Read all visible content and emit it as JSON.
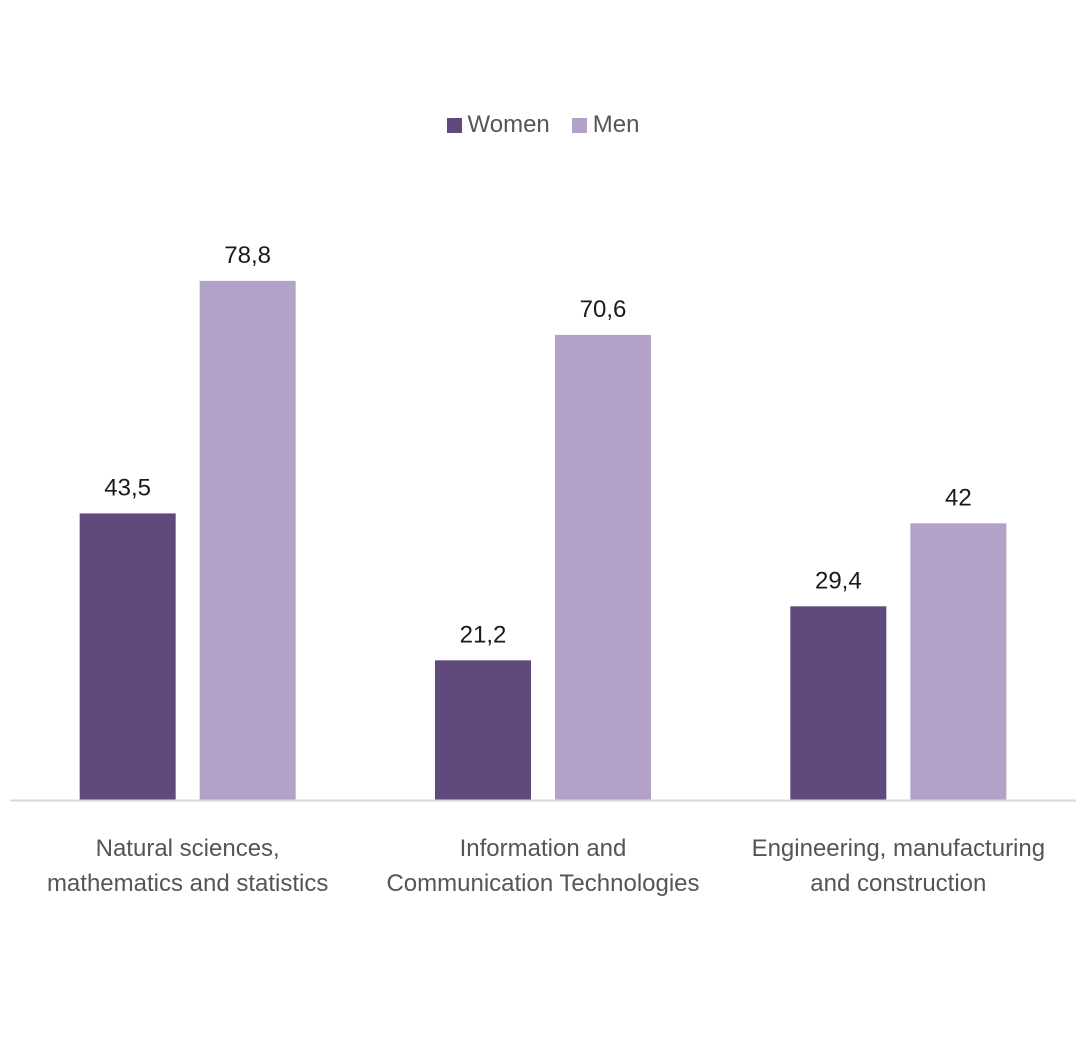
{
  "chart_data": {
    "type": "bar",
    "categories": [
      [
        "Natural sciences,",
        "mathematics and statistics"
      ],
      [
        "Information and",
        "Communication Technologies"
      ],
      [
        "Engineering, manufacturing",
        "and construction"
      ]
    ],
    "series": [
      {
        "name": "Women",
        "values": [
          43.5,
          21.2,
          29.4
        ],
        "labels": [
          "43,5",
          "21,2",
          "29,4"
        ],
        "color": "#604a7b"
      },
      {
        "name": "Men",
        "values": [
          78.8,
          70.6,
          42
        ],
        "labels": [
          "78,8",
          "70,6",
          "42"
        ],
        "color": "#b3a2c7"
      }
    ],
    "title": "",
    "xlabel": "",
    "ylabel": "",
    "ylim": [
      0,
      100
    ],
    "grid": false,
    "legend_position": "top-center",
    "axis_color": "#d9d9d9"
  }
}
